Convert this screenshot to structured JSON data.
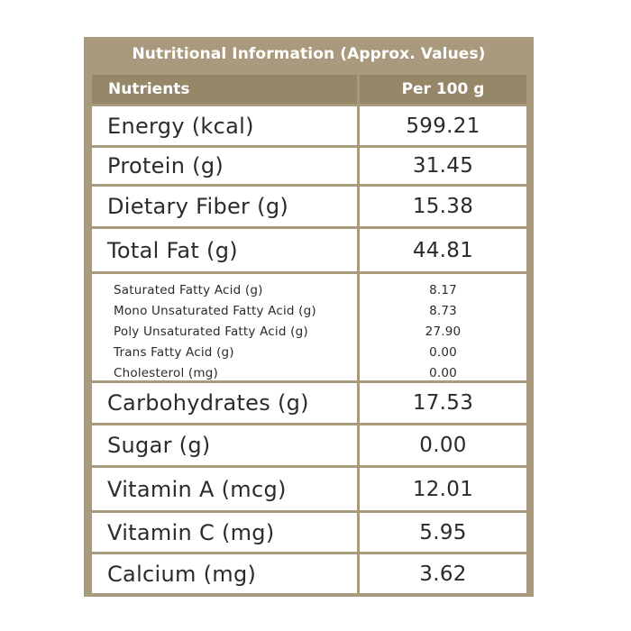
{
  "title": "Nutritional Information (Approx. Values)",
  "header": {
    "nutrients": "Nutrients",
    "per": "Per 100 g"
  },
  "rows": [
    {
      "name": "Energy (kcal)",
      "value": "599.21"
    },
    {
      "name": "Protein (g)",
      "value": "31.45"
    },
    {
      "name": "Dietary Fiber (g)",
      "value": "15.38"
    },
    {
      "name": "Total Fat (g)",
      "value": "44.81"
    },
    {
      "name": "Carbohydrates (g)",
      "value": "17.53"
    },
    {
      "name": "Sugar (g)",
      "value": "0.00"
    },
    {
      "name": "Vitamin A (mcg)",
      "value": "12.01"
    },
    {
      "name": "Vitamin C (mg)",
      "value": "5.95"
    },
    {
      "name": "Calcium (mg)",
      "value": "3.62"
    }
  ],
  "fat_breakdown": [
    {
      "name": "Saturated Fatty Acid (g)",
      "value": "8.17"
    },
    {
      "name": "Mono Unsaturated Fatty Acid (g)",
      "value": "8.73"
    },
    {
      "name": "Poly Unsaturated Fatty Acid (g)",
      "value": "27.90"
    },
    {
      "name": "Trans Fatty Acid (g)",
      "value": "0.00"
    },
    {
      "name": "Cholesterol (mg)",
      "value": "0.00"
    }
  ],
  "colors": {
    "border": "#a99a7d",
    "header_bg": "#968769",
    "text": "#2b2b2b"
  }
}
